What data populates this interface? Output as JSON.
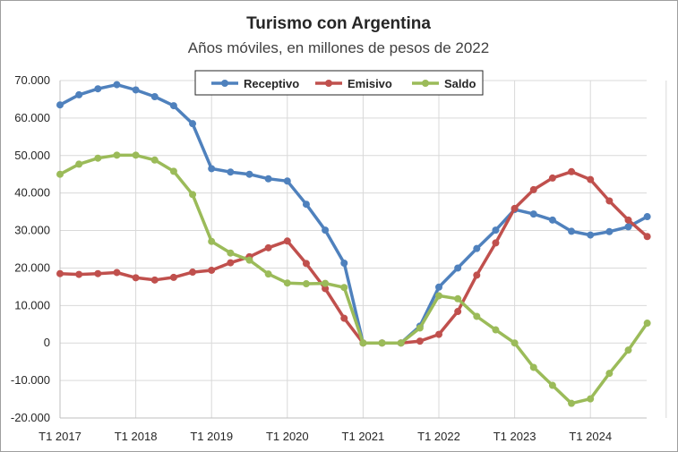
{
  "chart_data": {
    "type": "line",
    "title": "Turismo con Argentina",
    "subtitle": "Años móviles, en millones de pesos de 2022",
    "xlabel": "",
    "ylabel": "",
    "ylim": [
      -20000,
      70000
    ],
    "y_ticks": [
      -20000,
      -10000,
      0,
      10000,
      20000,
      30000,
      40000,
      50000,
      60000,
      70000
    ],
    "y_tick_labels": [
      "-20.000",
      "-10.000",
      "0",
      "10.000",
      "20.000",
      "30.000",
      "40.000",
      "50.000",
      "60.000",
      "70.000"
    ],
    "x_tick_labels": [
      "T1 2017",
      "T1 2018",
      "T1 2019",
      "T1 2020",
      "T1 2021",
      "T1 2022",
      "T1 2023",
      "T1 2024"
    ],
    "x_count": 32,
    "grid": true,
    "legend_position": "top-center",
    "series": [
      {
        "name": "Receptivo",
        "color": "#4f81bd",
        "values": [
          63500,
          66200,
          67800,
          68900,
          67500,
          65700,
          63300,
          58500,
          46500,
          45600,
          45000,
          43800,
          43200,
          37000,
          30100,
          21300,
          0,
          0,
          0,
          4500,
          14900,
          20000,
          25200,
          30100,
          35600,
          34400,
          32800,
          29800,
          28800,
          29700,
          31000,
          33700
        ]
      },
      {
        "name": "Emisivo",
        "color": "#c0504d",
        "values": [
          18500,
          18300,
          18500,
          18800,
          17400,
          16800,
          17500,
          18900,
          19400,
          21400,
          23000,
          25400,
          27200,
          21200,
          14500,
          6600,
          0,
          0,
          0,
          500,
          2300,
          8400,
          18100,
          26700,
          35900,
          40900,
          44000,
          45700,
          43600,
          37900,
          32800,
          28400
        ]
      },
      {
        "name": "Saldo",
        "color": "#9bbb59",
        "values": [
          45000,
          47700,
          49300,
          50100,
          50100,
          48800,
          45800,
          39600,
          27100,
          24000,
          22100,
          18400,
          16000,
          15800,
          15900,
          14800,
          0,
          0,
          0,
          4000,
          12600,
          11800,
          7100,
          3500,
          0,
          -6500,
          -11300,
          -16100,
          -14900,
          -8100,
          -1900,
          5300
        ]
      }
    ]
  }
}
